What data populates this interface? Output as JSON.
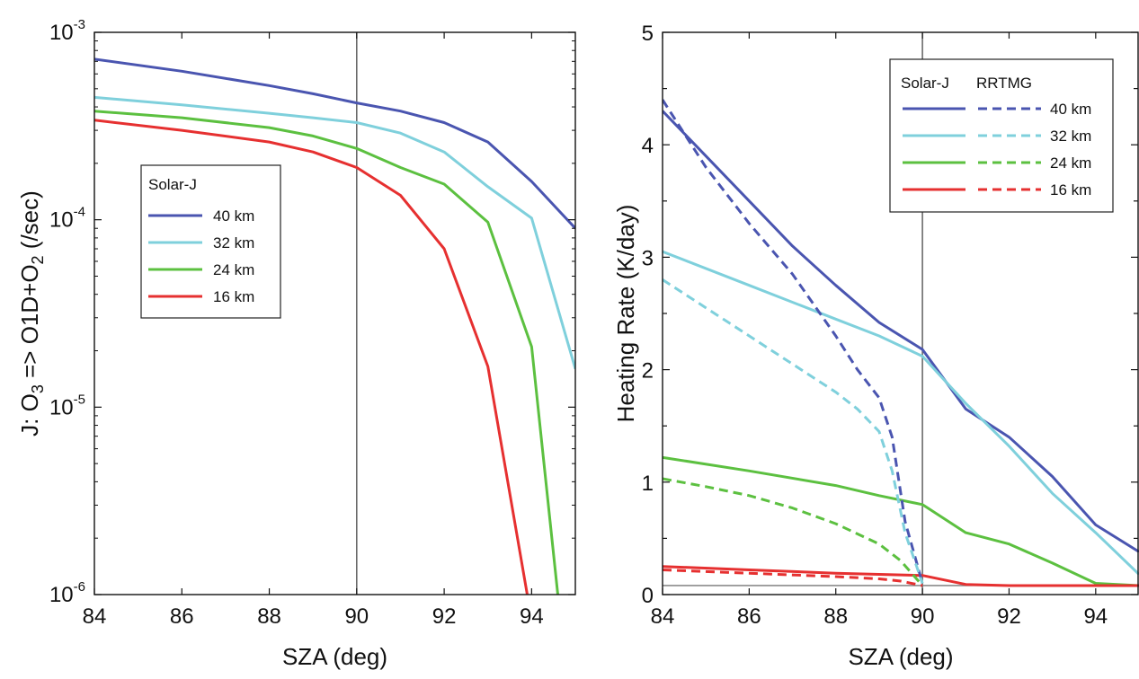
{
  "colors": {
    "40 km": "#4a55b0",
    "32 km": "#7fd0dc",
    "24 km": "#5cc040",
    "16 km": "#e63030",
    "axis": "#111111",
    "refline": "#555555",
    "zero_line": "#777777"
  },
  "chart_data": [
    {
      "type": "line",
      "xlabel": "SZA (deg)",
      "ylabel_parts": [
        "J: O",
        "3",
        " => O1D+O",
        "2",
        " (/sec)"
      ],
      "yscale": "log",
      "xlim": [
        84,
        95
      ],
      "ylim": [
        1e-06,
        0.001
      ],
      "x_ticks": [
        "84",
        "86",
        "88",
        "90",
        "92",
        "94"
      ],
      "y_ticks": [
        {
          "base": "10",
          "exp": "-3",
          "value": 0.001
        },
        {
          "base": "10",
          "exp": "-4",
          "value": 0.0001
        },
        {
          "base": "10",
          "exp": "-5",
          "value": 1e-05
        },
        {
          "base": "10",
          "exp": "-6",
          "value": 1e-06
        }
      ],
      "vline_x": 90,
      "legend": {
        "title": "Solar-J",
        "location": "center-left",
        "entries": [
          "40 km",
          "32 km",
          "24 km",
          "16 km"
        ]
      },
      "series": [
        {
          "name": "40 km",
          "x": [
            84,
            86,
            88,
            89,
            90,
            91,
            92,
            93,
            94,
            95
          ],
          "y": [
            0.00072,
            0.00062,
            0.00052,
            0.00047,
            0.00042,
            0.00038,
            0.00033,
            0.00026,
            0.00016,
            9e-05
          ]
        },
        {
          "name": "32 km",
          "x": [
            84,
            86,
            88,
            89,
            90,
            91,
            92,
            93,
            94,
            95
          ],
          "y": [
            0.00045,
            0.00041,
            0.00037,
            0.00035,
            0.00033,
            0.00029,
            0.00023,
            0.00015,
            0.000102,
            1.6e-05
          ]
        },
        {
          "name": "24 km",
          "x": [
            84,
            86,
            88,
            89,
            90,
            91,
            92,
            93,
            94,
            94.6
          ],
          "y": [
            0.00038,
            0.00035,
            0.00031,
            0.00028,
            0.00024,
            0.00019,
            0.000155,
            9.7e-05,
            2.1e-05,
            1e-06
          ]
        },
        {
          "name": "16 km",
          "x": [
            84,
            86,
            88,
            89,
            90,
            91,
            92,
            93,
            93.9
          ],
          "y": [
            0.00034,
            0.0003,
            0.00026,
            0.00023,
            0.00019,
            0.000135,
            7e-05,
            1.65e-05,
            1e-06
          ]
        }
      ]
    },
    {
      "type": "line",
      "xlabel": "SZA (deg)",
      "ylabel": "Heating Rate (K/day)",
      "xlim": [
        84,
        95
      ],
      "ylim": [
        0,
        5
      ],
      "x_ticks": [
        "84",
        "86",
        "88",
        "90",
        "92",
        "94"
      ],
      "y_ticks": [
        "0",
        "1",
        "2",
        "3",
        "4",
        "5"
      ],
      "vline_x": 90,
      "hline_y": 0.08,
      "legend": {
        "location": "top-right",
        "headers": [
          "Solar-J",
          "RRTMG"
        ],
        "entries": [
          "40 km",
          "32 km",
          "24 km",
          "16 km"
        ]
      },
      "series": [
        {
          "name": "40 km",
          "model": "Solar-J",
          "style": "solid",
          "x": [
            84,
            85,
            86,
            87,
            88,
            89,
            90,
            91,
            92,
            93,
            94,
            95
          ],
          "y": [
            4.3,
            3.9,
            3.5,
            3.1,
            2.75,
            2.42,
            2.18,
            1.65,
            1.4,
            1.05,
            0.62,
            0.38
          ]
        },
        {
          "name": "32 km",
          "model": "Solar-J",
          "style": "solid",
          "x": [
            84,
            86,
            88,
            89,
            90,
            91,
            92,
            93,
            94,
            95
          ],
          "y": [
            3.05,
            2.75,
            2.45,
            2.3,
            2.12,
            1.7,
            1.32,
            0.9,
            0.55,
            0.18
          ]
        },
        {
          "name": "24 km",
          "model": "Solar-J",
          "style": "solid",
          "x": [
            84,
            86,
            88,
            89,
            90,
            91,
            92,
            93,
            94,
            95
          ],
          "y": [
            1.22,
            1.1,
            0.97,
            0.88,
            0.8,
            0.55,
            0.45,
            0.28,
            0.1,
            0.08
          ]
        },
        {
          "name": "16 km",
          "model": "Solar-J",
          "style": "solid",
          "x": [
            84,
            86,
            88,
            89,
            90,
            91,
            92,
            93,
            94,
            95
          ],
          "y": [
            0.25,
            0.22,
            0.19,
            0.18,
            0.17,
            0.09,
            0.08,
            0.08,
            0.08,
            0.08
          ]
        },
        {
          "name": "40 km",
          "model": "RRTMG",
          "style": "dashed",
          "x": [
            84,
            85,
            86,
            87,
            88,
            88.5,
            89,
            89.3,
            89.6,
            90
          ],
          "y": [
            4.4,
            3.8,
            3.3,
            2.85,
            2.3,
            2.0,
            1.75,
            1.4,
            0.65,
            0.1
          ]
        },
        {
          "name": "32 km",
          "model": "RRTMG",
          "style": "dashed",
          "x": [
            84,
            85,
            86,
            87,
            88,
            88.5,
            89,
            89.3,
            89.6,
            90
          ],
          "y": [
            2.8,
            2.55,
            2.3,
            2.05,
            1.8,
            1.65,
            1.45,
            1.1,
            0.55,
            0.1
          ]
        },
        {
          "name": "24 km",
          "model": "RRTMG",
          "style": "dashed",
          "x": [
            84,
            85,
            86,
            87,
            88,
            89,
            89.5,
            90
          ],
          "y": [
            1.03,
            0.96,
            0.88,
            0.77,
            0.63,
            0.45,
            0.3,
            0.08
          ]
        },
        {
          "name": "16 km",
          "model": "RRTMG",
          "style": "dashed",
          "x": [
            84,
            86,
            88,
            89,
            89.5,
            90
          ],
          "y": [
            0.22,
            0.19,
            0.16,
            0.14,
            0.12,
            0.08
          ]
        }
      ]
    }
  ]
}
